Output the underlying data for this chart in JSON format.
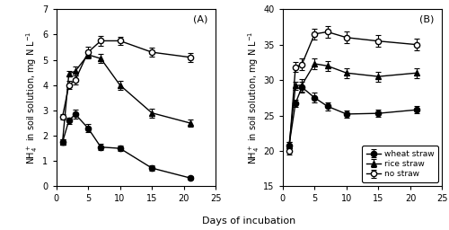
{
  "days": [
    1,
    2,
    3,
    5,
    7,
    10,
    15,
    21
  ],
  "panel_A": {
    "wheat_straw": [
      1.75,
      2.6,
      2.85,
      2.3,
      1.55,
      1.5,
      0.72,
      0.33
    ],
    "wheat_straw_err": [
      0.1,
      0.12,
      0.18,
      0.15,
      0.12,
      0.1,
      0.1,
      0.07
    ],
    "rice_straw": [
      1.75,
      4.45,
      4.55,
      5.2,
      5.05,
      4.0,
      2.9,
      2.5
    ],
    "rice_straw_err": [
      0.1,
      0.12,
      0.18,
      0.15,
      0.18,
      0.18,
      0.18,
      0.15
    ],
    "no_straw": [
      2.75,
      4.0,
      4.2,
      5.3,
      5.75,
      5.75,
      5.3,
      5.1
    ],
    "no_straw_err": [
      0.1,
      0.15,
      0.18,
      0.2,
      0.18,
      0.15,
      0.18,
      0.18
    ],
    "ylabel": "NH$_4^+$ in soil solution, mg N L$^{-1}$",
    "ylim": [
      0,
      7
    ],
    "yticks": [
      0,
      1,
      2,
      3,
      4,
      5,
      6,
      7
    ],
    "label": "(A)"
  },
  "panel_B": {
    "wheat_straw": [
      20.8,
      26.7,
      29.0,
      27.5,
      26.3,
      25.2,
      25.3,
      25.8
    ],
    "wheat_straw_err": [
      0.4,
      0.5,
      0.8,
      0.7,
      0.6,
      0.5,
      0.5,
      0.5
    ],
    "rice_straw": [
      20.8,
      29.2,
      29.3,
      32.3,
      32.0,
      31.0,
      30.5,
      31.0
    ],
    "rice_straw_err": [
      0.4,
      0.6,
      0.9,
      0.8,
      0.7,
      0.7,
      0.7,
      0.7
    ],
    "no_straw": [
      20.0,
      31.8,
      32.2,
      36.5,
      36.8,
      36.0,
      35.5,
      35.0
    ],
    "no_straw_err": [
      0.5,
      0.7,
      0.8,
      0.8,
      0.8,
      0.8,
      0.8,
      0.8
    ],
    "ylabel": "NH$_4^+$ in soil solution, mg N L$^{-1}$",
    "ylim": [
      15,
      40
    ],
    "yticks": [
      15,
      20,
      25,
      30,
      35,
      40
    ],
    "label": "(B)"
  },
  "xlabel": "Days of incubation",
  "xlim": [
    0,
    25
  ],
  "xticks": [
    0,
    5,
    10,
    15,
    20,
    25
  ],
  "legend_labels": [
    "wheat straw",
    "rice straw",
    "no straw"
  ],
  "line_color": "black",
  "marker_size": 4.5,
  "tick_fontsize": 7,
  "label_fontsize": 7,
  "xlabel_fontsize": 8
}
